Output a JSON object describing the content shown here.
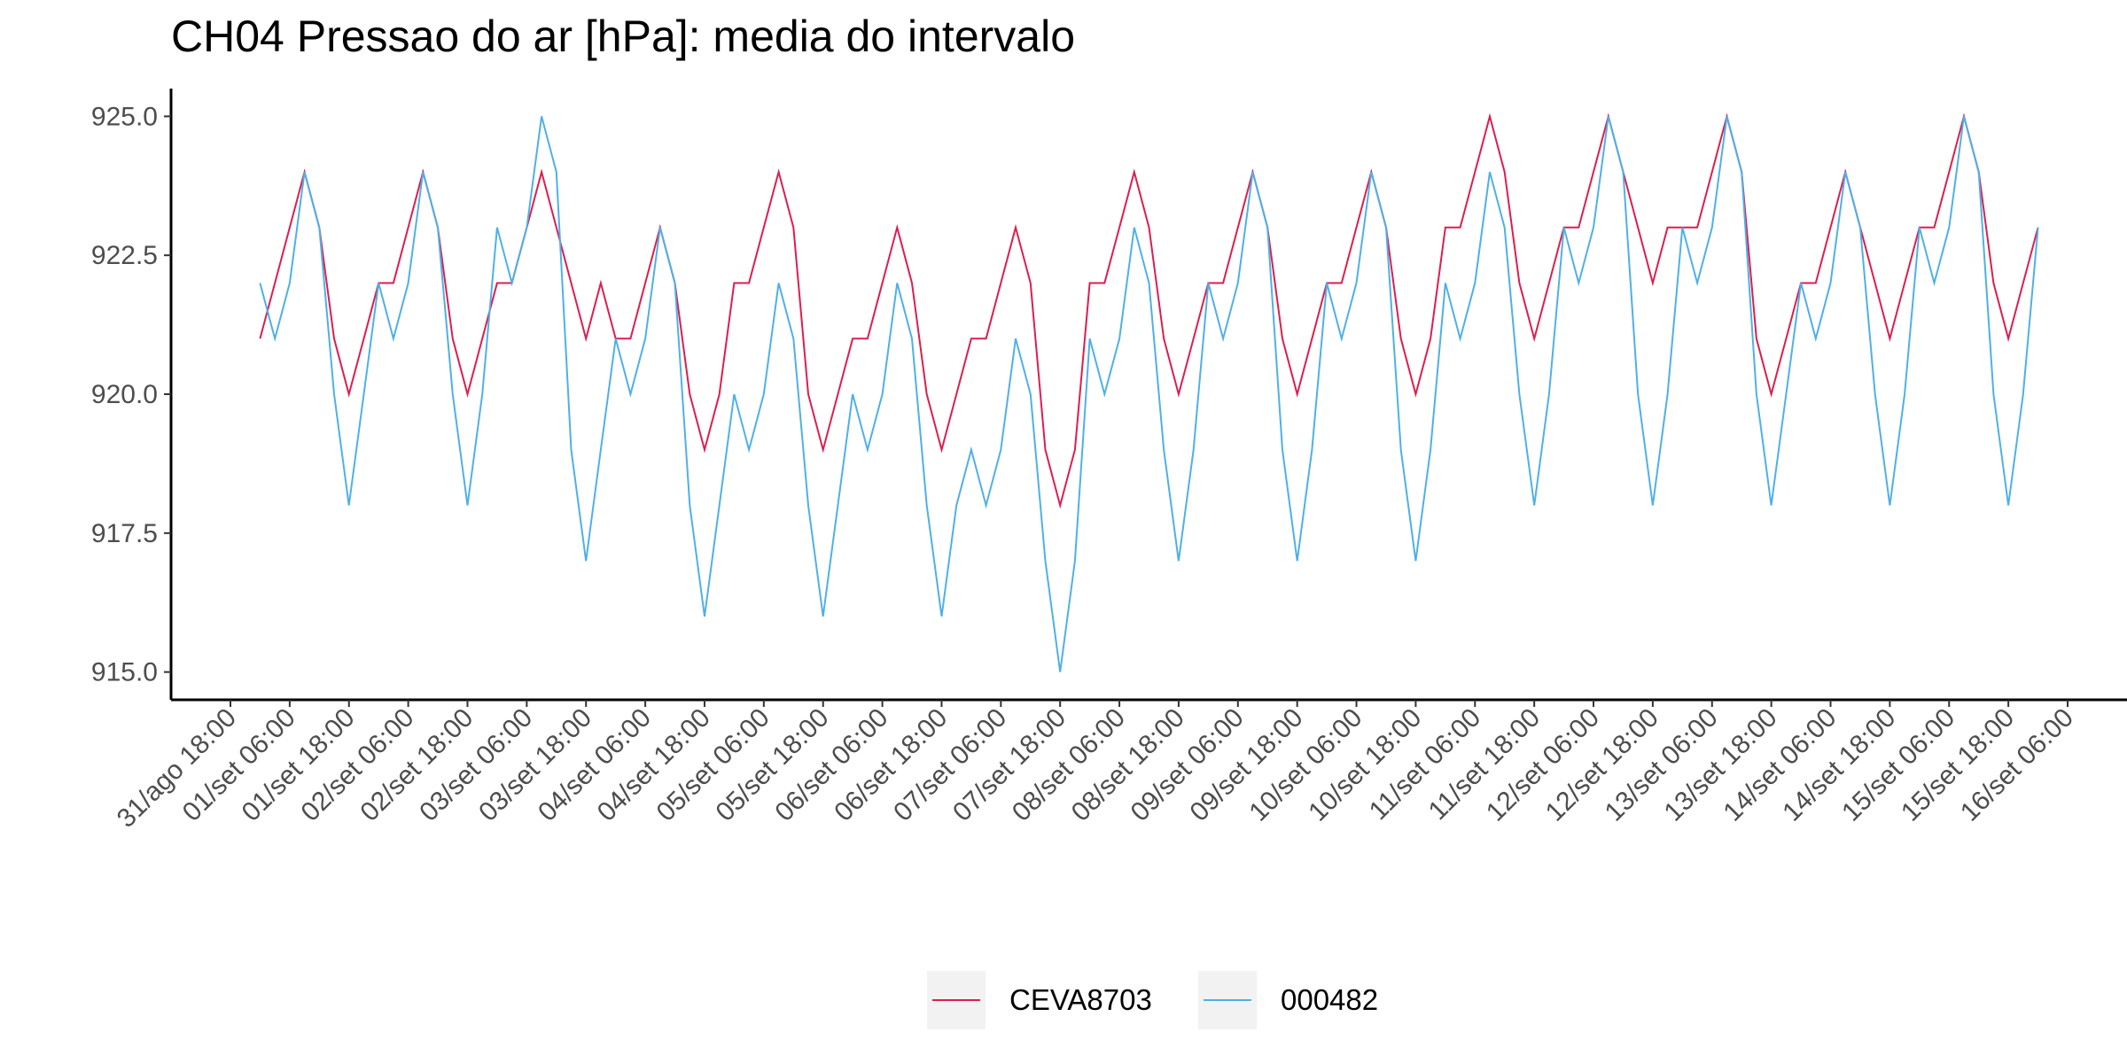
{
  "chart_data": {
    "type": "line",
    "title": "CH04 Pressao do ar [hPa]: media do intervalo",
    "categories": [
      "31/ago 18:00",
      null,
      null,
      null,
      "01/set 06:00",
      null,
      null,
      null,
      "01/set 18:00",
      null,
      null,
      null,
      "02/set 06:00",
      null,
      null,
      null,
      "02/set 18:00",
      null,
      null,
      null,
      "03/set 06:00",
      null,
      null,
      null,
      "03/set 18:00",
      null,
      null,
      null,
      "04/set 06:00",
      null,
      null,
      null,
      "04/set 18:00",
      null,
      null,
      null,
      "05/set 06:00",
      null,
      null,
      null,
      "05/set 18:00",
      null,
      null,
      null,
      "06/set 06:00",
      null,
      null,
      null,
      "06/set 18:00",
      null,
      null,
      null,
      "07/set 06:00",
      null,
      null,
      null,
      "07/set 18:00",
      null,
      null,
      null,
      "08/set 06:00",
      null,
      null,
      null,
      "08/set 18:00",
      null,
      null,
      null,
      "09/set 06:00",
      null,
      null,
      null,
      "09/set 18:00",
      null,
      null,
      null,
      "10/set 06:00",
      null,
      null,
      null,
      "10/set 18:00",
      null,
      null,
      null,
      "11/set 06:00",
      null,
      null,
      null,
      "11/set 18:00",
      null,
      null,
      null,
      "12/set 06:00",
      null,
      null,
      null,
      "12/set 18:00",
      null,
      null,
      null,
      "13/set 06:00",
      null,
      null,
      null,
      "13/set 18:00",
      null,
      null,
      null,
      "14/set 06:00",
      null,
      null,
      null,
      "14/set 18:00",
      null,
      null,
      null,
      "15/set 06:00",
      null,
      null,
      null,
      "15/set 18:00",
      null,
      null,
      null,
      "16/set 06:00"
    ],
    "series": [
      {
        "name": "CEVA8703",
        "color": "#dc1e4e",
        "values": [
          null,
          null,
          921,
          922,
          923,
          924,
          923,
          921,
          920,
          921,
          922,
          922,
          923,
          924,
          923,
          921,
          920,
          921,
          922,
          922,
          923,
          924,
          923,
          922,
          921,
          922,
          921,
          921,
          922,
          923,
          922,
          920,
          919,
          920,
          922,
          922,
          923,
          924,
          923,
          920,
          919,
          920,
          921,
          921,
          922,
          923,
          922,
          920,
          919,
          920,
          921,
          921,
          922,
          923,
          922,
          919,
          918,
          919,
          922,
          922,
          923,
          924,
          923,
          921,
          920,
          921,
          922,
          922,
          923,
          924,
          923,
          921,
          920,
          921,
          922,
          922,
          923,
          924,
          923,
          921,
          920,
          921,
          923,
          923,
          924,
          925,
          924,
          922,
          921,
          922,
          923,
          923,
          924,
          925,
          924,
          923,
          922,
          923,
          923,
          923,
          924,
          925,
          924,
          921,
          920,
          921,
          922,
          922,
          923,
          924,
          923,
          922,
          921,
          922,
          923,
          923,
          924,
          925,
          924,
          922,
          921,
          922,
          923,
          null,
          null
        ]
      },
      {
        "name": "000482",
        "color": "#4fb0e8",
        "values": [
          null,
          null,
          922,
          921,
          922,
          924,
          923,
          920,
          918,
          920,
          922,
          921,
          922,
          924,
          923,
          920,
          918,
          920,
          923,
          922,
          923,
          925,
          924,
          919,
          917,
          919,
          921,
          920,
          921,
          923,
          922,
          918,
          916,
          918,
          920,
          919,
          920,
          922,
          921,
          918,
          916,
          918,
          920,
          919,
          920,
          922,
          921,
          918,
          916,
          918,
          919,
          918,
          919,
          921,
          920,
          917,
          915,
          917,
          921,
          920,
          921,
          923,
          922,
          919,
          917,
          919,
          922,
          921,
          922,
          924,
          923,
          919,
          917,
          919,
          922,
          921,
          922,
          924,
          923,
          919,
          917,
          919,
          922,
          921,
          922,
          924,
          923,
          920,
          918,
          920,
          923,
          922,
          923,
          925,
          924,
          920,
          918,
          920,
          923,
          922,
          923,
          925,
          924,
          920,
          918,
          920,
          922,
          921,
          922,
          924,
          923,
          920,
          918,
          920,
          923,
          922,
          923,
          925,
          924,
          920,
          918,
          920,
          923,
          null,
          null
        ]
      }
    ],
    "ylim": [
      914.5,
      925.5
    ],
    "yticks": [
      {
        "value": 915,
        "label": "915.0"
      },
      {
        "value": 917.5,
        "label": "917.5"
      },
      {
        "value": 920,
        "label": "920.0"
      },
      {
        "value": 922.5,
        "label": "922.5"
      },
      {
        "value": 925,
        "label": "925.0"
      }
    ],
    "grid": false,
    "legend": "bottom"
  }
}
